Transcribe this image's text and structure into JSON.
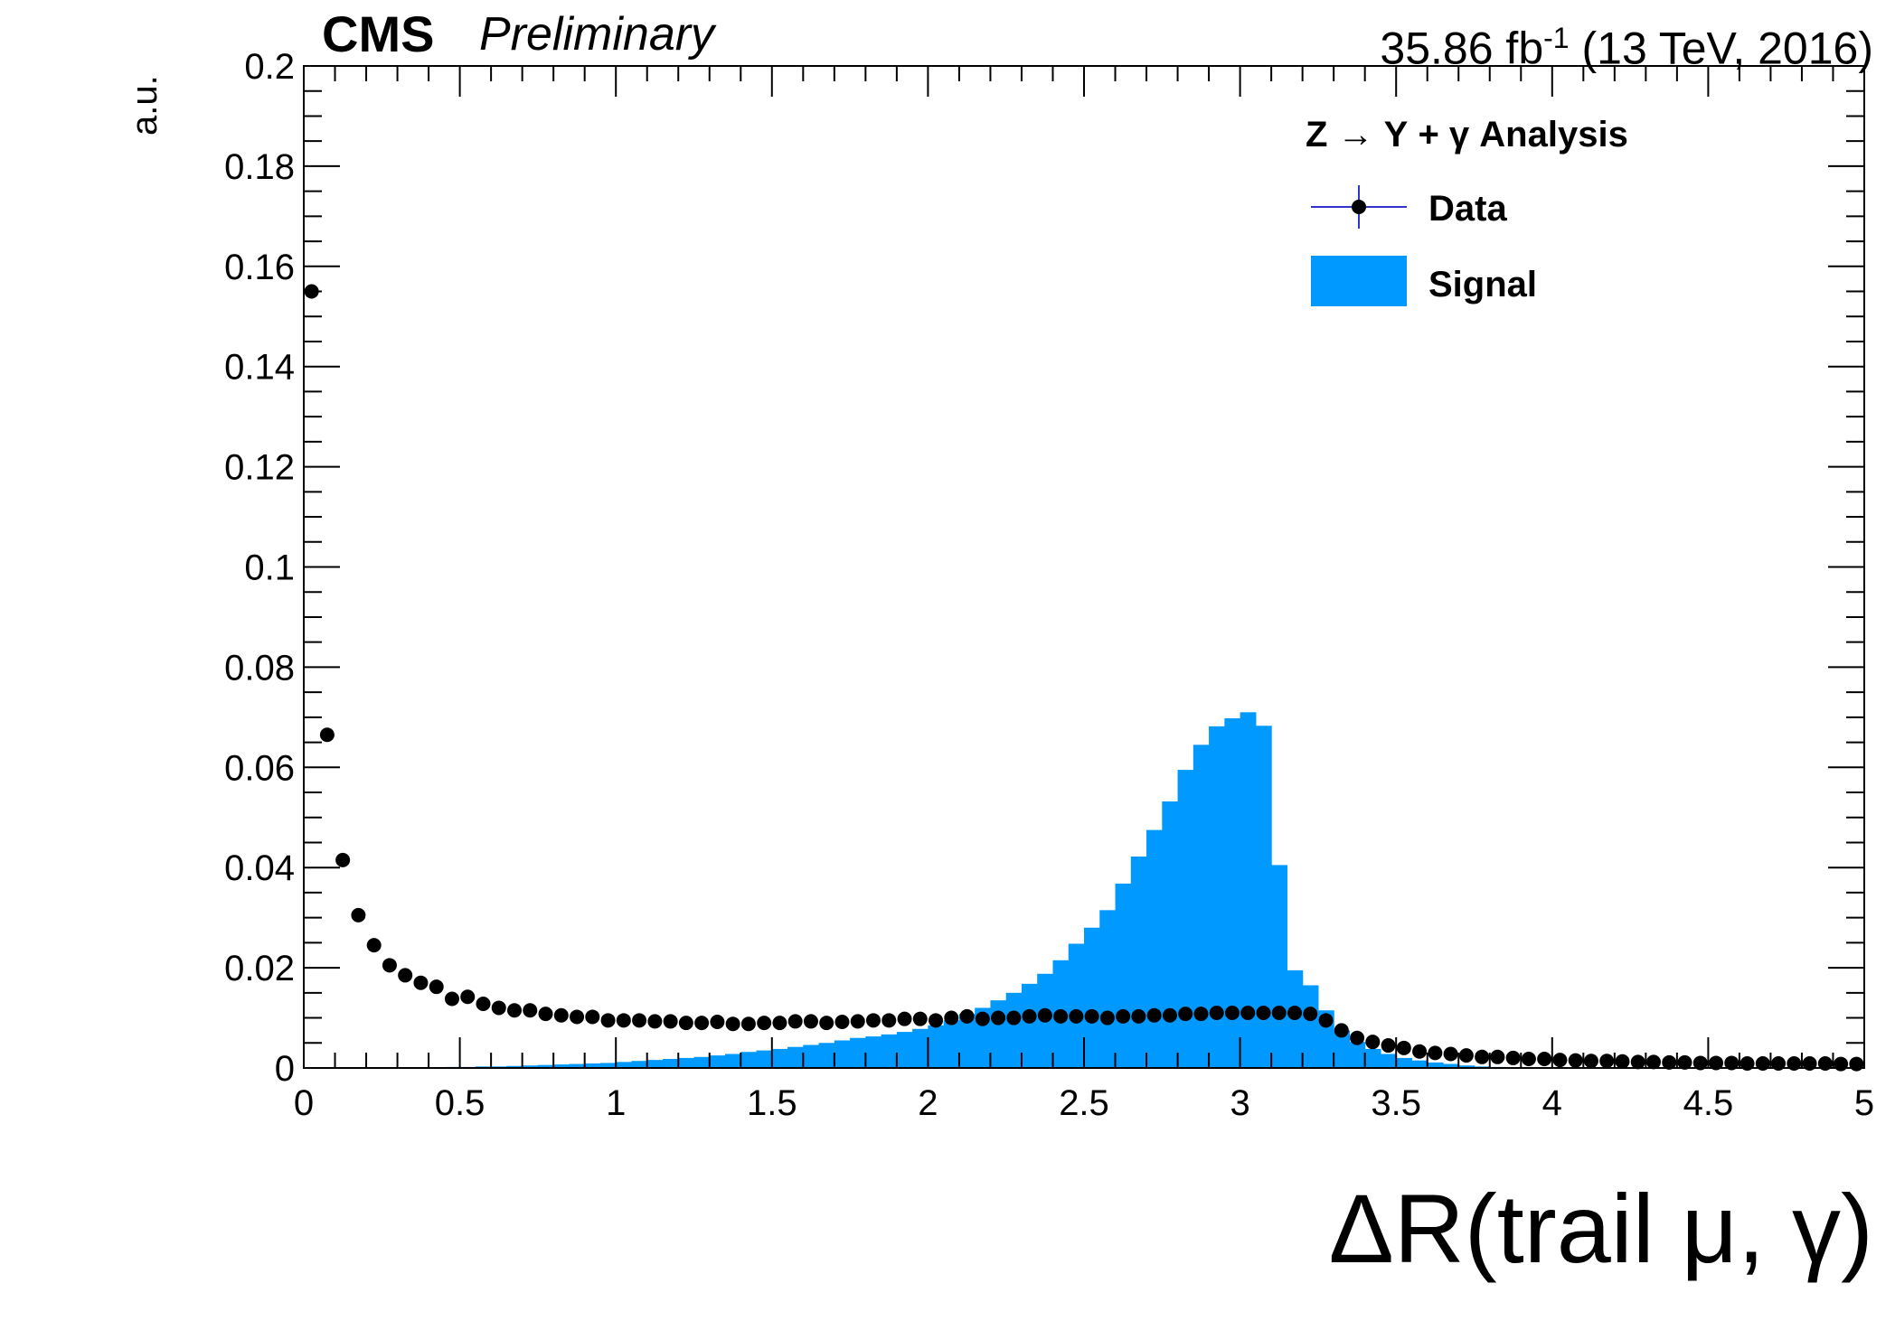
{
  "header": {
    "experiment": "CMS",
    "status": "Preliminary",
    "lumi_value": "35.86 fb",
    "lumi_sup": "-1",
    "lumi_conditions": "(13 TeV, 2016)"
  },
  "colors": {
    "signal_fill": "#0099ff",
    "data_marker": "#000000",
    "legend_data_line": "#3333cc"
  },
  "chart_data": {
    "type": "bar",
    "title": "",
    "xlabel": "ΔR(trail μ, γ)",
    "ylabel": "a.u.",
    "xlim": [
      0,
      5
    ],
    "ylim": [
      0,
      0.2
    ],
    "grid": false,
    "x_tick_labels": [
      "0",
      "0.5",
      "1",
      "1.5",
      "2",
      "2.5",
      "3",
      "3.5",
      "4",
      "4.5",
      "5"
    ],
    "y_tick_labels": [
      "0",
      "0.02",
      "0.04",
      "0.06",
      "0.08",
      "0.1",
      "0.12",
      "0.14",
      "0.16",
      "0.18",
      "0.2"
    ],
    "legend": {
      "placement": "top-right",
      "title": "Z → Υ + γ Analysis",
      "entries": [
        "Data",
        "Signal"
      ]
    },
    "bin_width": 0.05,
    "series": [
      {
        "name": "Data",
        "kind": "points",
        "x": [
          0.025,
          0.075,
          0.125,
          0.175,
          0.225,
          0.275,
          0.325,
          0.375,
          0.425,
          0.475,
          0.525,
          0.575,
          0.625,
          0.675,
          0.725,
          0.775,
          0.825,
          0.875,
          0.925,
          0.975,
          1.025,
          1.075,
          1.125,
          1.175,
          1.225,
          1.275,
          1.325,
          1.375,
          1.425,
          1.475,
          1.525,
          1.575,
          1.625,
          1.675,
          1.725,
          1.775,
          1.825,
          1.875,
          1.925,
          1.975,
          2.025,
          2.075,
          2.125,
          2.175,
          2.225,
          2.275,
          2.325,
          2.375,
          2.425,
          2.475,
          2.525,
          2.575,
          2.625,
          2.675,
          2.725,
          2.775,
          2.825,
          2.875,
          2.925,
          2.975,
          3.025,
          3.075,
          3.125,
          3.175,
          3.225,
          3.275,
          3.325,
          3.375,
          3.425,
          3.475,
          3.525,
          3.575,
          3.625,
          3.675,
          3.725,
          3.775,
          3.825,
          3.875,
          3.925,
          3.975,
          4.025,
          4.075,
          4.125,
          4.175,
          4.225,
          4.275,
          4.325,
          4.375,
          4.425,
          4.475,
          4.525,
          4.575,
          4.625,
          4.675,
          4.725,
          4.775,
          4.825,
          4.875,
          4.925,
          4.975
        ],
        "values": [
          0.155,
          0.0665,
          0.0415,
          0.0305,
          0.0245,
          0.0205,
          0.0185,
          0.017,
          0.0162,
          0.0138,
          0.0142,
          0.0128,
          0.012,
          0.0115,
          0.0115,
          0.0108,
          0.0105,
          0.0102,
          0.0102,
          0.0095,
          0.0095,
          0.0095,
          0.0093,
          0.0093,
          0.009,
          0.009,
          0.0092,
          0.0088,
          0.0088,
          0.009,
          0.009,
          0.0093,
          0.0093,
          0.009,
          0.0092,
          0.0093,
          0.0095,
          0.0095,
          0.0098,
          0.0098,
          0.0095,
          0.01,
          0.0103,
          0.0098,
          0.01,
          0.01,
          0.0103,
          0.0105,
          0.0103,
          0.0103,
          0.0103,
          0.01,
          0.0103,
          0.0103,
          0.0105,
          0.0105,
          0.0108,
          0.0108,
          0.011,
          0.011,
          0.011,
          0.011,
          0.011,
          0.011,
          0.0108,
          0.0095,
          0.0075,
          0.006,
          0.0052,
          0.0045,
          0.004,
          0.0033,
          0.003,
          0.0028,
          0.0025,
          0.0022,
          0.0022,
          0.002,
          0.0018,
          0.0018,
          0.0016,
          0.0015,
          0.0014,
          0.0014,
          0.0013,
          0.0012,
          0.0012,
          0.0011,
          0.0011,
          0.001,
          0.001,
          0.001,
          0.0009,
          0.0009,
          0.0009,
          0.0009,
          0.0009,
          0.0009,
          0.0008,
          0.0008
        ]
      },
      {
        "name": "Signal",
        "kind": "histogram",
        "x": [
          0.025,
          0.075,
          0.125,
          0.175,
          0.225,
          0.275,
          0.325,
          0.375,
          0.425,
          0.475,
          0.525,
          0.575,
          0.625,
          0.675,
          0.725,
          0.775,
          0.825,
          0.875,
          0.925,
          0.975,
          1.025,
          1.075,
          1.125,
          1.175,
          1.225,
          1.275,
          1.325,
          1.375,
          1.425,
          1.475,
          1.525,
          1.575,
          1.625,
          1.675,
          1.725,
          1.775,
          1.825,
          1.875,
          1.925,
          1.975,
          2.025,
          2.075,
          2.125,
          2.175,
          2.225,
          2.275,
          2.325,
          2.375,
          2.425,
          2.475,
          2.525,
          2.575,
          2.625,
          2.675,
          2.725,
          2.775,
          2.825,
          2.875,
          2.925,
          2.975,
          3.025,
          3.075,
          3.125,
          3.175,
          3.225,
          3.275,
          3.325,
          3.375,
          3.425,
          3.475,
          3.525,
          3.575,
          3.625,
          3.675,
          3.725,
          3.775,
          3.825,
          3.875,
          3.925,
          3.975,
          4.025,
          4.075,
          4.125,
          4.175,
          4.225,
          4.275,
          4.325,
          4.375,
          4.425,
          4.475,
          4.525,
          4.575,
          4.625,
          4.675,
          4.725,
          4.775,
          4.825,
          4.875,
          4.925,
          4.975
        ],
        "values": [
          0,
          0,
          0,
          0,
          0,
          0,
          0,
          0,
          0.0001,
          0.0002,
          0.0002,
          0.0003,
          0.0003,
          0.0004,
          0.0005,
          0.0006,
          0.0007,
          0.0008,
          0.0009,
          0.001,
          0.0012,
          0.0014,
          0.0016,
          0.0018,
          0.002,
          0.0022,
          0.0025,
          0.0028,
          0.0032,
          0.0035,
          0.0038,
          0.0042,
          0.0046,
          0.005,
          0.0055,
          0.006,
          0.0063,
          0.0067,
          0.0072,
          0.0078,
          0.0085,
          0.0095,
          0.0108,
          0.012,
          0.0135,
          0.015,
          0.0168,
          0.0188,
          0.0215,
          0.0248,
          0.028,
          0.0315,
          0.0368,
          0.0422,
          0.0475,
          0.0532,
          0.0595,
          0.0645,
          0.0682,
          0.0698,
          0.071,
          0.0683,
          0.0405,
          0.0195,
          0.0165,
          0.0115,
          0.0075,
          0.0052,
          0.0038,
          0.0028,
          0.002,
          0.0015,
          0.0011,
          0.0008,
          0.0005,
          0.0003,
          0.0002,
          0.0001,
          0,
          0,
          0,
          0,
          0,
          0,
          0,
          0,
          0,
          0,
          0,
          0,
          0,
          0,
          0,
          0,
          0,
          0,
          0,
          0,
          0,
          0
        ]
      }
    ]
  }
}
